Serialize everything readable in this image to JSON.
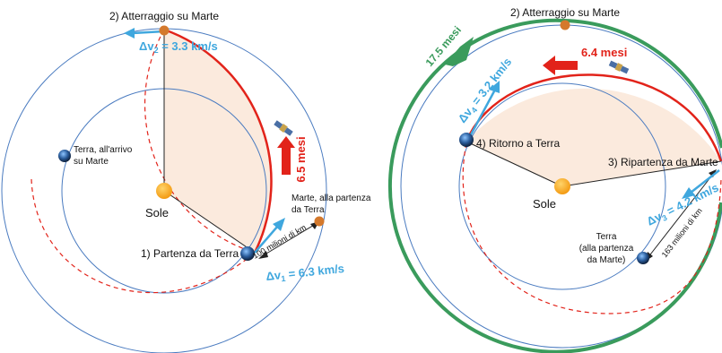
{
  "left": {
    "landing_mars": "2) Atterraggio su Marte",
    "dv2_label": "Δv",
    "dv2_sub": "2",
    "dv2_value": " = 3.3 km/s",
    "earth_arrival_line1": "Terra, all'arrivo",
    "earth_arrival_line2": "su Marte",
    "sun": "Sole",
    "transfer_time": "6.5 mesi",
    "mars_departure_line1": "Marte, alla partenza",
    "mars_departure_line2": "da Terra",
    "distance": "100 milioni di km",
    "departure_earth": "1) Partenza da Terra",
    "dv1_label": "Δv",
    "dv1_sub": "1",
    "dv1_value": " = 6.3 km/s"
  },
  "right": {
    "landing_mars": "2) Atterraggio su Marte",
    "wait_time": "17.5 mesi",
    "transfer_time": "6.4 mesi",
    "dv4_label": "Δv",
    "dv4_sub": "4",
    "dv4_value": " = 3.2 km/s",
    "return_earth": "4) Ritorno a Terra",
    "departure_mars": "3) Ripartenza da Marte",
    "sun": "Sole",
    "dv3_label": "Δv",
    "dv3_sub": "3",
    "dv3_value": " = 4.2 km/s",
    "distance": "163 milioni di km",
    "earth_departure_line1": "Terra",
    "earth_departure_line2": "(alla partenza",
    "earth_departure_line3": "da Marte)"
  },
  "colors": {
    "orbit": "#4a7bc0",
    "transfer": "#e2231a",
    "dv": "#3fa7de",
    "wait": "#3a9b5c",
    "sector": "#fbeadd",
    "sun": "#f7a823",
    "mars": "#d4792c"
  }
}
